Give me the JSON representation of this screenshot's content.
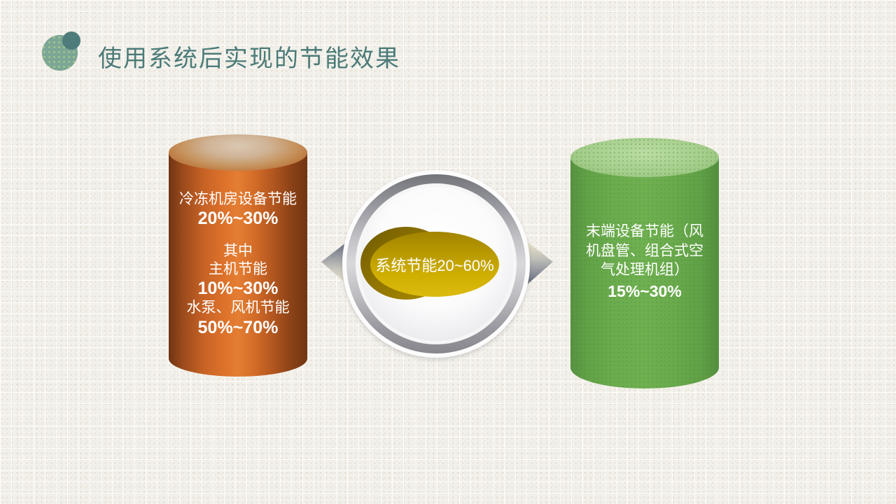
{
  "slide": {
    "title": "使用系统后实现的节能效果"
  },
  "left_cylinder": {
    "lines": [
      "冷冻机房设备节能",
      "20%~30%",
      "其中",
      "主机节能",
      "10%~30%",
      "水泵、风机节能",
      "50%~70%"
    ]
  },
  "center": {
    "label": "系统节能20~60%"
  },
  "right_cylinder": {
    "text": "末端设备节能（风\n机盘管、组合式空\n气处理机组）",
    "value": "15%~30%"
  },
  "colors": {
    "title_teal": "#4b7b78",
    "decor_circle_large": "#7ca695",
    "decor_circle_small": "#4e7c7b",
    "left_cylinder_orange": "#dd722b",
    "right_cylinder_green": "#6bac4e",
    "center_gold": "#cfae00",
    "ring_silver": "#9b9ba2",
    "text_white": "#ffffff",
    "background": "#f2f0ea"
  }
}
